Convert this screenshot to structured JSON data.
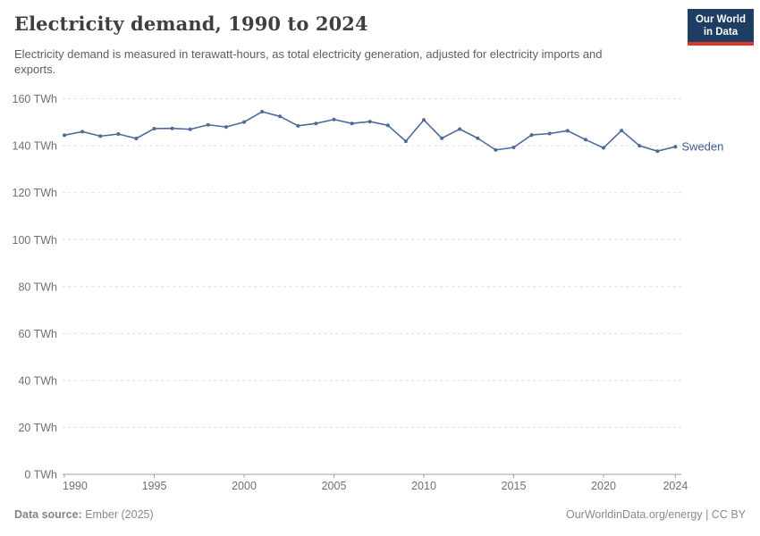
{
  "header": {
    "title": "Electricity demand, 1990 to 2024",
    "subtitle": "Electricity demand is measured in terawatt-hours, as total electricity generation, adjusted for electricity imports and exports.",
    "logo": {
      "line1": "Our World",
      "line2": "in Data"
    }
  },
  "chart_data": {
    "type": "line",
    "title": "Electricity demand, 1990 to 2024",
    "unit": "TWh",
    "x": [
      1990,
      1991,
      1992,
      1993,
      1994,
      1995,
      1996,
      1997,
      1998,
      1999,
      2000,
      2001,
      2002,
      2003,
      2004,
      2005,
      2006,
      2007,
      2008,
      2009,
      2010,
      2011,
      2012,
      2013,
      2014,
      2015,
      2016,
      2017,
      2018,
      2019,
      2020,
      2021,
      2022,
      2023,
      2024
    ],
    "series": [
      {
        "name": "Sweden",
        "values": [
          144.5,
          146.0,
          144.1,
          145.0,
          143.1,
          147.3,
          147.4,
          147.0,
          148.9,
          148.0,
          150.1,
          154.5,
          152.5,
          148.5,
          149.5,
          151.2,
          149.5,
          150.3,
          148.7,
          141.9,
          151.0,
          143.2,
          147.1,
          143.2,
          138.2,
          139.3,
          144.6,
          145.2,
          146.4,
          142.6,
          139.1,
          146.5,
          140.0,
          137.7,
          139.6
        ]
      }
    ],
    "x_ticks": [
      1990,
      1995,
      2000,
      2005,
      2010,
      2015,
      2020,
      2024
    ],
    "y_ticks": [
      0,
      20,
      40,
      60,
      80,
      100,
      120,
      140,
      160
    ],
    "y_tick_suffix": " TWh",
    "ylim": [
      0,
      160
    ],
    "xlim": [
      1990,
      2024
    ],
    "grid": "horizontal-dashed",
    "legend_position": "end-of-line-label"
  },
  "colors": {
    "line": "#4C6A9C",
    "series_label": "#3d5a8c",
    "grid": "#dddddd",
    "axis": "#a1a1a1",
    "tick_label": "#707070",
    "logo_bg": "#1d3d63",
    "logo_accent": "#e0372b"
  },
  "footer": {
    "source_label": "Data source:",
    "source_value": "Ember (2025)",
    "credit": "OurWorldinData.org/energy | CC BY"
  }
}
